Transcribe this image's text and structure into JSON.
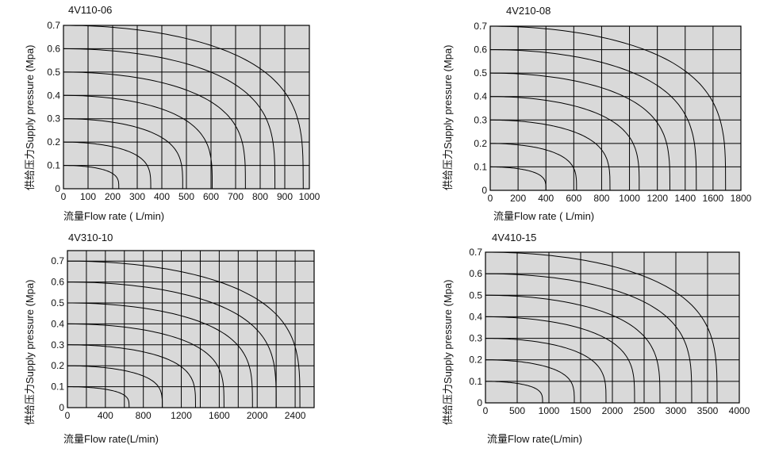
{
  "chart_data": [
    {
      "type": "line",
      "title": "4V110-06",
      "xlabel": "流量Flow rate ( L/min)",
      "ylabel": "供给压力Supply pressure    (Mpa)",
      "xlim": [
        0,
        1000
      ],
      "ylim": [
        0,
        0.7
      ],
      "xticks": [
        0,
        100,
        200,
        300,
        400,
        500,
        600,
        700,
        800,
        900,
        1000
      ],
      "xtick_labels": [
        "0",
        "100",
        "200",
        "300",
        "400",
        "500",
        "600",
        "700",
        "800",
        "900",
        "1000"
      ],
      "yticks": [
        0,
        0.1,
        0.2,
        0.3,
        0.4,
        0.5,
        0.6,
        0.7
      ],
      "ytick_labels": [
        "0",
        "0.1",
        "0.2",
        "0.3",
        "0.4",
        "0.5",
        "0.6",
        "0.7"
      ],
      "grid": true,
      "series": [
        {
          "pressure": 0.1,
          "max_flow": 225
        },
        {
          "pressure": 0.2,
          "max_flow": 355
        },
        {
          "pressure": 0.3,
          "max_flow": 485
        },
        {
          "pressure": 0.4,
          "max_flow": 605
        },
        {
          "pressure": 0.5,
          "max_flow": 740
        },
        {
          "pressure": 0.6,
          "max_flow": 860
        },
        {
          "pressure": 0.7,
          "max_flow": 975
        }
      ]
    },
    {
      "type": "line",
      "title": "4V210-08",
      "xlabel": "流量Flow rate ( L/min)",
      "ylabel": "供给压力Supply pressure    (Mpa)",
      "xlim": [
        0,
        1800
      ],
      "ylim": [
        0,
        0.7
      ],
      "xticks": [
        0,
        200,
        400,
        600,
        800,
        1000,
        1200,
        1400,
        1600,
        1800
      ],
      "xtick_labels": [
        "0",
        "200",
        "400",
        "600",
        "800",
        "1000",
        "1200",
        "1400",
        "1600",
        "1800"
      ],
      "yticks": [
        0,
        0.1,
        0.2,
        0.3,
        0.4,
        0.5,
        0.6,
        0.7
      ],
      "ytick_labels": [
        "0",
        "0.1",
        "0.2",
        "0.3",
        "0.4",
        "0.5",
        "0.6",
        "0.7"
      ],
      "grid": true,
      "series": [
        {
          "pressure": 0.1,
          "max_flow": 400
        },
        {
          "pressure": 0.2,
          "max_flow": 620
        },
        {
          "pressure": 0.3,
          "max_flow": 860
        },
        {
          "pressure": 0.4,
          "max_flow": 1070
        },
        {
          "pressure": 0.5,
          "max_flow": 1290
        },
        {
          "pressure": 0.6,
          "max_flow": 1480
        },
        {
          "pressure": 0.7,
          "max_flow": 1690
        }
      ]
    },
    {
      "type": "line",
      "title": "4V310-10",
      "xlabel": "流量Flow rate(L/min)",
      "ylabel": "供给压力Supply pressure    (Mpa)",
      "xlim": [
        0,
        2600
      ],
      "ylim": [
        0,
        0.75
      ],
      "xticks": [
        0,
        200,
        400,
        600,
        800,
        1000,
        1200,
        1400,
        1600,
        1800,
        2000,
        2200,
        2400,
        2600
      ],
      "xtick_labels": [
        "0",
        "",
        "400",
        "",
        "800",
        "",
        "1200",
        "",
        "1600",
        "",
        "2000",
        "",
        "2400",
        ""
      ],
      "yticks": [
        0,
        0.1,
        0.2,
        0.3,
        0.4,
        0.5,
        0.6,
        0.7
      ],
      "ytick_labels": [
        "0",
        "0.1",
        "0.2",
        "0.3",
        "0.4",
        "0.5",
        "0.6",
        "0.7"
      ],
      "grid": true,
      "series": [
        {
          "pressure": 0.1,
          "max_flow": 650
        },
        {
          "pressure": 0.2,
          "max_flow": 1000
        },
        {
          "pressure": 0.3,
          "max_flow": 1350
        },
        {
          "pressure": 0.4,
          "max_flow": 1650
        },
        {
          "pressure": 0.5,
          "max_flow": 1950
        },
        {
          "pressure": 0.6,
          "max_flow": 2200
        },
        {
          "pressure": 0.7,
          "max_flow": 2450
        }
      ]
    },
    {
      "type": "line",
      "title": "4V410-15",
      "xlabel": "流量Flow rate(L/min)",
      "ylabel": "供给压力Supply pressure    (Mpa)",
      "xlim": [
        0,
        4000
      ],
      "ylim": [
        0,
        0.7
      ],
      "xticks": [
        0,
        500,
        1000,
        1500,
        2000,
        2500,
        3000,
        3500,
        4000
      ],
      "xtick_labels": [
        "0",
        "500",
        "1000",
        "1500",
        "2000",
        "2500",
        "3000",
        "3500",
        "4000"
      ],
      "yticks": [
        0,
        0.1,
        0.2,
        0.3,
        0.4,
        0.5,
        0.6,
        0.7
      ],
      "ytick_labels": [
        "0",
        "0.1",
        "0.2",
        "0.3",
        "0.4",
        "0.5",
        "0.6",
        "0.7"
      ],
      "grid": true,
      "series": [
        {
          "pressure": 0.1,
          "max_flow": 900
        },
        {
          "pressure": 0.2,
          "max_flow": 1400
        },
        {
          "pressure": 0.3,
          "max_flow": 1900
        },
        {
          "pressure": 0.4,
          "max_flow": 2350
        },
        {
          "pressure": 0.5,
          "max_flow": 2750
        },
        {
          "pressure": 0.6,
          "max_flow": 3250
        },
        {
          "pressure": 0.7,
          "max_flow": 3650
        }
      ]
    }
  ],
  "colors": {
    "plot_bg": "#d9d9d9",
    "grid": "#000000",
    "curve": "#000000"
  }
}
